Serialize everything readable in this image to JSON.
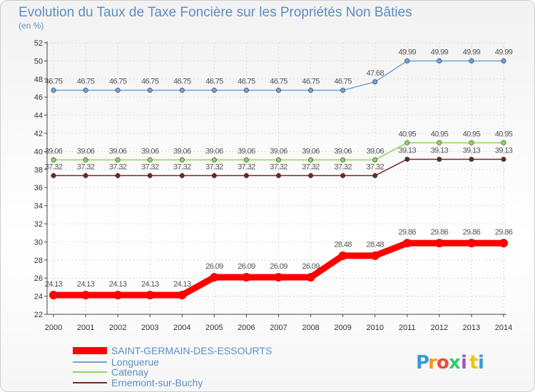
{
  "chart_data": {
    "type": "line",
    "title": "Evolution du Taux de Taxe Foncière sur les Propriétés Non Bâties",
    "subtitle": "(en %)",
    "x": [
      "2000",
      "2001",
      "2002",
      "2003",
      "2004",
      "2005",
      "2006",
      "2007",
      "2008",
      "2009",
      "2010",
      "2011",
      "2012",
      "2013",
      "2014"
    ],
    "ylim": [
      22,
      52
    ],
    "yticks": [
      22,
      24,
      26,
      28,
      30,
      32,
      34,
      36,
      38,
      40,
      42,
      44,
      46,
      48,
      50,
      52
    ],
    "grid": true,
    "series": [
      {
        "name": "SAINT-GERMAIN-DES-ESSOURTS",
        "color": "#ff0000",
        "values": [
          24.13,
          24.13,
          24.13,
          24.13,
          24.13,
          26.09,
          26.09,
          26.09,
          26.09,
          28.48,
          28.48,
          29.86,
          29.86,
          29.86,
          29.86
        ],
        "labels": [
          "24.13",
          "24.13",
          "24.13",
          "24.13",
          "24.13",
          "26.09",
          "26.09",
          "26.09",
          "26.09",
          "28.48",
          "28.48",
          "29.86",
          "29.86",
          "29.86",
          "29.86"
        ]
      },
      {
        "name": "Longuerue",
        "color": "#6ea3d6",
        "values": [
          46.75,
          46.75,
          46.75,
          46.75,
          46.75,
          46.75,
          46.75,
          46.75,
          46.75,
          46.75,
          47.68,
          49.99,
          49.99,
          49.99,
          49.99
        ],
        "labels": [
          "46.75",
          "46.75",
          "46.75",
          "46.75",
          "46.75",
          "46.75",
          "46.75",
          "46.75",
          "46.75",
          "46.75",
          "47.68",
          "49.99",
          "49.99",
          "49.99",
          "49.99"
        ]
      },
      {
        "name": "Catenay",
        "color": "#8fd45a",
        "values": [
          39.06,
          39.06,
          39.06,
          39.06,
          39.06,
          39.06,
          39.06,
          39.06,
          39.06,
          39.06,
          39.06,
          40.95,
          40.95,
          40.95,
          40.95
        ],
        "labels": [
          "39.06",
          "39.06",
          "39.06",
          "39.06",
          "39.06",
          "39.06",
          "39.06",
          "39.06",
          "39.06",
          "39.06",
          "39.06",
          "40.95",
          "40.95",
          "40.95",
          "40.95"
        ]
      },
      {
        "name": "Ernemont-sur-Buchy",
        "color": "#6b2a2a",
        "values": [
          37.32,
          37.32,
          37.32,
          37.32,
          37.32,
          37.32,
          37.32,
          37.32,
          37.32,
          37.32,
          37.32,
          39.13,
          39.13,
          39.13,
          39.13
        ],
        "labels": [
          "37.32",
          "37.32",
          "37.32",
          "37.32",
          "37.32",
          "37.32",
          "37.32",
          "37.32",
          "37.32",
          "37.32",
          "37.32",
          "39.13",
          "39.13",
          "39.13",
          "39.13"
        ]
      }
    ],
    "legend_position": "bottom-left"
  },
  "logo": {
    "letters": [
      "P",
      "r",
      "o",
      "x",
      "i",
      "t",
      "i"
    ],
    "colors": [
      "#3a9ad9",
      "#f39c12",
      "#e74c3c",
      "#2ecc71",
      "#9b59b6",
      "#f1c40f",
      "#3a9ad9"
    ]
  }
}
